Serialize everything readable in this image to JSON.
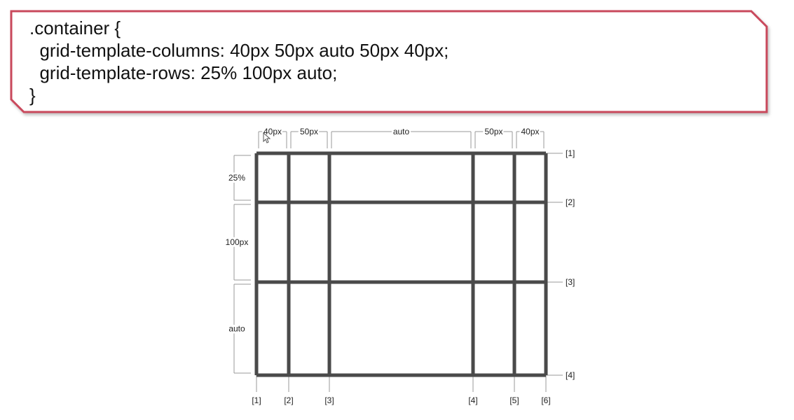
{
  "code": {
    "lines": [
      ".container {",
      "  grid-template-columns: 40px 50px auto 50px 40px;",
      "  grid-template-rows: 25% 100px auto;",
      "}"
    ]
  },
  "diagram": {
    "column_sizes": [
      "40px",
      "50px",
      "auto",
      "50px",
      "40px"
    ],
    "row_sizes": [
      "25%",
      "100px",
      "auto"
    ],
    "column_lines": [
      "[1]",
      "[2]",
      "[3]",
      "[4]",
      "[5]",
      "[6]"
    ],
    "row_lines": [
      "[1]",
      "[2]",
      "[3]",
      "[4]"
    ],
    "colors": {
      "grid": "#4a4a4a",
      "border": "#c9485b",
      "guide": "#9a9a9a"
    }
  }
}
